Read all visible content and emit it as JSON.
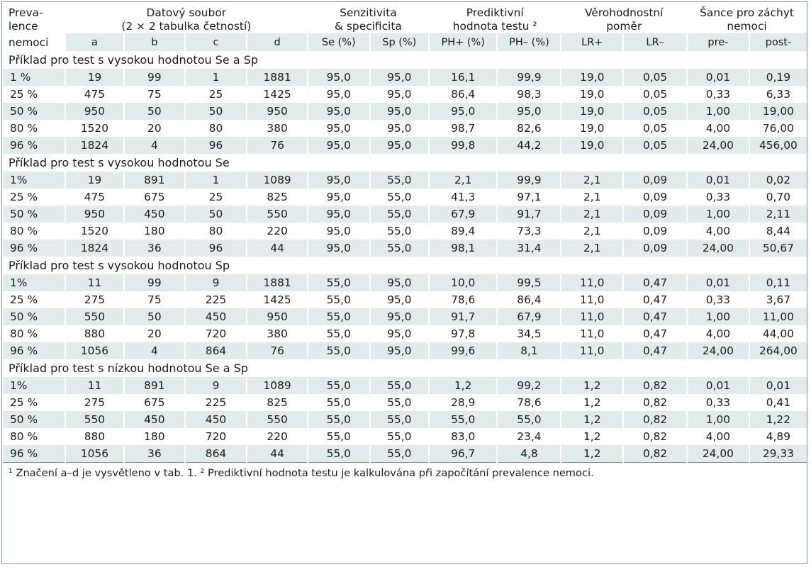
{
  "header": {
    "prevalence": [
      "Preva-",
      "lence",
      "nemoci"
    ],
    "dataset": [
      "Datový soubor",
      "(2 × 2 tabulka četností)"
    ],
    "sens_spec": [
      "Senzitivita",
      "& specificita"
    ],
    "predictive": [
      "Prediktivní",
      "hodnota testu ²"
    ],
    "likelihood": [
      "Věrohodnostní",
      "poměr"
    ],
    "odds": [
      "Šance pro záchyt",
      "nemoci"
    ],
    "columns": [
      "a",
      "b",
      "c",
      "d",
      "Se (%)",
      "Sp (%)",
      "PH+ (%)",
      "PH– (%)",
      "LR+",
      "LR–",
      "pre-",
      "post-"
    ]
  },
  "sections": [
    {
      "title": "Příklad pro test s vysokou hodnotou Se a Sp",
      "rows": [
        [
          "1 %",
          "19",
          "99",
          "1",
          "1881",
          "95,0",
          "95,0",
          "16,1",
          "99,9",
          "19,0",
          "0,05",
          "0,01",
          "0,19"
        ],
        [
          "25 %",
          "475",
          "75",
          "25",
          "1425",
          "95,0",
          "95,0",
          "86,4",
          "98,3",
          "19,0",
          "0,05",
          "0,33",
          "6,33"
        ],
        [
          "50 %",
          "950",
          "50",
          "50",
          "950",
          "95,0",
          "95,0",
          "95,0",
          "95,0",
          "19,0",
          "0,05",
          "1,00",
          "19,00"
        ],
        [
          "80 %",
          "1520",
          "20",
          "80",
          "380",
          "95,0",
          "95,0",
          "98,7",
          "82,6",
          "19,0",
          "0,05",
          "4,00",
          "76,00"
        ],
        [
          "96 %",
          "1824",
          "4",
          "96",
          "76",
          "95,0",
          "95,0",
          "99,8",
          "44,2",
          "19,0",
          "0,05",
          "24,00",
          "456,00"
        ]
      ]
    },
    {
      "title": "Příklad pro test s vysokou hodnotou Se",
      "rows": [
        [
          "1%",
          "19",
          "891",
          "1",
          "1089",
          "95,0",
          "55,0",
          "2,1",
          "99,9",
          "2,1",
          "0,09",
          "0,01",
          "0,02"
        ],
        [
          "25 %",
          "475",
          "675",
          "25",
          "825",
          "95,0",
          "55,0",
          "41,3",
          "97,1",
          "2,1",
          "0,09",
          "0,33",
          "0,70"
        ],
        [
          "50 %",
          "950",
          "450",
          "50",
          "550",
          "95,0",
          "55,0",
          "67,9",
          "91,7",
          "2,1",
          "0,09",
          "1,00",
          "2,11"
        ],
        [
          "80 %",
          "1520",
          "180",
          "80",
          "220",
          "95,0",
          "55,0",
          "89,4",
          "73,3",
          "2,1",
          "0,09",
          "4,00",
          "8,44"
        ],
        [
          "96 %",
          "1824",
          "36",
          "96",
          "44",
          "95,0",
          "55,0",
          "98,1",
          "31,4",
          "2,1",
          "0,09",
          "24,00",
          "50,67"
        ]
      ]
    },
    {
      "title": "Příklad pro test s vysokou hodnotou Sp",
      "rows": [
        [
          "1%",
          "11",
          "99",
          "9",
          "1881",
          "55,0",
          "95,0",
          "10,0",
          "99,5",
          "11,0",
          "0,47",
          "0,01",
          "0,11"
        ],
        [
          "25 %",
          "275",
          "75",
          "225",
          "1425",
          "55,0",
          "95,0",
          "78,6",
          "86,4",
          "11,0",
          "0,47",
          "0,33",
          "3,67"
        ],
        [
          "50 %",
          "550",
          "50",
          "450",
          "950",
          "55,0",
          "95,0",
          "91,7",
          "67,9",
          "11,0",
          "0,47",
          "1,00",
          "11,00"
        ],
        [
          "80 %",
          "880",
          "20",
          "720",
          "380",
          "55,0",
          "95,0",
          "97,8",
          "34,5",
          "11,0",
          "0,47",
          "4,00",
          "44,00"
        ],
        [
          "96 %",
          "1056",
          "4",
          "864",
          "76",
          "55,0",
          "95,0",
          "99,6",
          "8,1",
          "11,0",
          "0,47",
          "24,00",
          "264,00"
        ]
      ]
    },
    {
      "title": "Příklad pro test s nízkou hodnotou Se a Sp",
      "rows": [
        [
          "1%",
          "11",
          "891",
          "9",
          "1089",
          "55,0",
          "55,0",
          "1,2",
          "99,2",
          "1,2",
          "0,82",
          "0,01",
          "0,01"
        ],
        [
          "25 %",
          "275",
          "675",
          "225",
          "825",
          "55,0",
          "55,0",
          "28,9",
          "78,6",
          "1,2",
          "0,82",
          "0,33",
          "0,41"
        ],
        [
          "50 %",
          "550",
          "450",
          "450",
          "550",
          "55,0",
          "55,0",
          "55,0",
          "55,0",
          "1,2",
          "0,82",
          "1,00",
          "1,22"
        ],
        [
          "80 %",
          "880",
          "180",
          "720",
          "220",
          "55,0",
          "55,0",
          "83,0",
          "23,4",
          "1,2",
          "0,82",
          "4,00",
          "4,89"
        ],
        [
          "96 %",
          "1056",
          "36",
          "864",
          "44",
          "55,0",
          "55,0",
          "96,7",
          "4,8",
          "1,2",
          "0,82",
          "24,00",
          "29,33"
        ]
      ]
    }
  ],
  "footnote": "¹ Značení a–d je vysvětleno v tab. 1. ² Prediktivní hodnota testu je kalkulována při započítání prevalence nemoci.",
  "colors": {
    "row_shade": "#e2ebeb",
    "border": "#8a8f92",
    "text": "#1a1a1a"
  }
}
